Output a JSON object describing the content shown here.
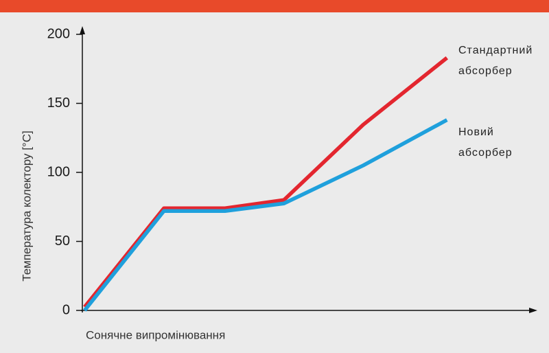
{
  "chart_data": {
    "type": "line",
    "ylabel": "Температура колектору [°C]",
    "xlabel": "Сонячне випромінювання",
    "x": [
      0.5,
      18,
      31.5,
      44.5,
      62,
      80.5
    ],
    "xlim": [
      0,
      100
    ],
    "ylim": [
      0,
      200
    ],
    "yticks": [
      0,
      50,
      100,
      150,
      200
    ],
    "series": [
      {
        "name": "Стандартний абсорбер",
        "color": "#e3262f",
        "values": [
          2.5,
          74,
          74,
          80,
          134.5,
          183
        ]
      },
      {
        "name": "Новий абсорбер",
        "color": "#1fa0dc",
        "values": [
          0,
          72,
          72,
          77.5,
          105,
          138
        ]
      }
    ]
  }
}
